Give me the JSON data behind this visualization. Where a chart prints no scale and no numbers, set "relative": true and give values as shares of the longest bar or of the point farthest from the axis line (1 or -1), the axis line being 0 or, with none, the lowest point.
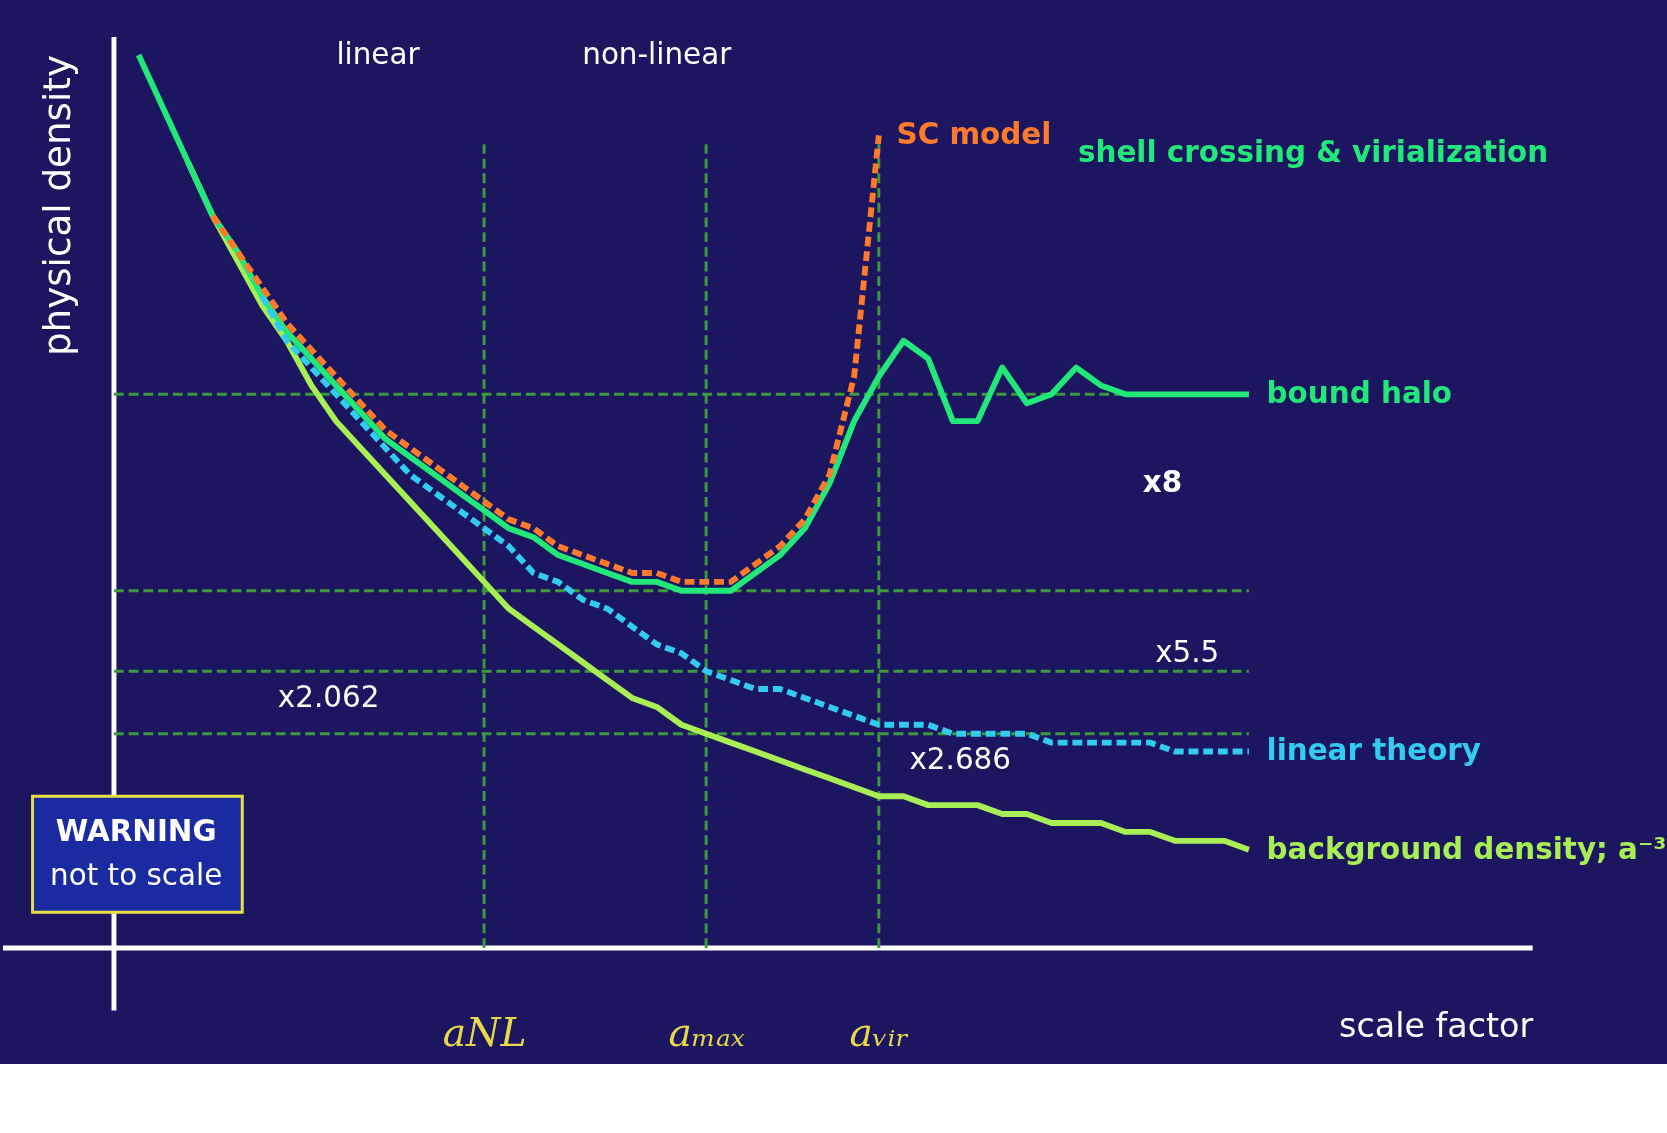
{
  "chart_data": {
    "type": "line",
    "relative": true,
    "ylabel": "physical density",
    "xlabel": "scale factor",
    "categories": [
      null,
      null,
      null,
      null,
      null,
      null,
      null,
      null,
      null,
      null,
      null,
      null,
      null,
      null,
      null,
      "aNL",
      null,
      null,
      null,
      null,
      null,
      null,
      null,
      null,
      "aₘₐₓ",
      null,
      null,
      null,
      null,
      null,
      null,
      "aᵥᵢᵣ",
      null,
      null,
      null,
      null,
      null,
      null,
      null,
      null,
      null,
      null,
      null,
      null,
      null,
      null,
      null
    ],
    "series": [
      {
        "name": "SC model",
        "color": "#ff7a2a",
        "line_style": "dashed",
        "values": [
          null,
          null,
          null,
          null,
          0.82,
          0.78,
          0.74,
          0.7,
          0.67,
          0.64,
          0.61,
          0.58,
          0.56,
          0.54,
          0.52,
          0.5,
          0.48,
          0.47,
          0.45,
          0.44,
          0.43,
          0.42,
          0.42,
          0.41,
          0.41,
          0.41,
          0.43,
          0.45,
          0.48,
          0.53,
          0.64,
          0.91,
          null,
          null,
          null,
          null,
          null,
          null,
          null,
          null,
          null,
          null,
          null,
          null,
          null,
          null,
          null
        ]
      },
      {
        "name": "linear theory",
        "color": "#33ccf0",
        "line_style": "dashed",
        "values": [
          null,
          null,
          null,
          null,
          null,
          null,
          0.73,
          0.68,
          0.65,
          0.62,
          0.59,
          0.56,
          0.53,
          0.51,
          0.49,
          0.47,
          0.45,
          0.42,
          0.41,
          0.39,
          0.38,
          0.36,
          0.34,
          0.33,
          0.31,
          0.3,
          0.29,
          0.29,
          0.28,
          0.27,
          0.26,
          0.25,
          0.25,
          0.25,
          0.24,
          0.24,
          0.24,
          0.24,
          0.23,
          0.23,
          0.23,
          0.23,
          0.23,
          0.22,
          0.22,
          0.22,
          0.22
        ]
      },
      {
        "name": "background density; a⁻³",
        "color": "#a8ee55",
        "line_style": "solid",
        "values": [
          null,
          null,
          null,
          0.88,
          0.82,
          0.77,
          0.72,
          0.68,
          0.63,
          0.59,
          0.56,
          0.53,
          0.5,
          0.47,
          0.44,
          0.41,
          0.38,
          0.36,
          0.34,
          0.32,
          0.3,
          0.28,
          0.27,
          0.25,
          0.24,
          0.23,
          0.22,
          0.21,
          0.2,
          0.19,
          0.18,
          0.17,
          0.17,
          0.16,
          0.16,
          0.16,
          0.15,
          0.15,
          0.14,
          0.14,
          0.14,
          0.13,
          0.13,
          0.12,
          0.12,
          0.12,
          0.11
        ]
      },
      {
        "name": "bound halo",
        "color": "#22e87a",
        "line_style": "solid",
        "values": [
          null,
          1.0,
          0.94,
          0.88,
          0.82,
          0.78,
          0.73,
          0.69,
          0.66,
          0.63,
          0.6,
          0.57,
          0.55,
          0.53,
          0.51,
          0.49,
          0.47,
          0.46,
          0.44,
          0.43,
          0.42,
          0.41,
          0.41,
          0.4,
          0.4,
          0.4,
          0.42,
          0.44,
          0.47,
          0.52,
          0.59,
          0.64,
          0.68,
          0.66,
          0.59,
          0.59,
          0.65,
          0.61,
          0.62,
          0.65,
          0.63,
          0.62,
          0.62,
          0.62,
          0.62,
          0.62,
          0.62
        ]
      }
    ],
    "ref_lines": [
      {
        "axis": "y",
        "value": 0.62,
        "color": "#3c9a3c",
        "line_style": "dashed"
      },
      {
        "axis": "y",
        "value": 0.4,
        "color": "#3c9a3c",
        "line_style": "dashed"
      },
      {
        "axis": "y",
        "value": 0.31,
        "color": "#3c9a3c",
        "line_style": "dashed"
      },
      {
        "axis": "y",
        "value": 0.24,
        "color": "#3c9a3c",
        "line_style": "dashed"
      },
      {
        "axis": "x",
        "value": "aNL",
        "color": "#3c9a3c",
        "line_style": "dashed"
      },
      {
        "axis": "x",
        "value": "aₘₐₓ",
        "color": "#3c9a3c",
        "line_style": "dashed"
      },
      {
        "axis": "x",
        "value": "aᵥᵢᵣ",
        "color": "#3c9a3c",
        "line_style": "dashed"
      }
    ],
    "annotations": [
      "linear",
      "non-linear",
      "shell crossing & virialization",
      "x8",
      "x5.5",
      "x2.062",
      "x2.686",
      "WARNING",
      "not to scale"
    ]
  }
}
